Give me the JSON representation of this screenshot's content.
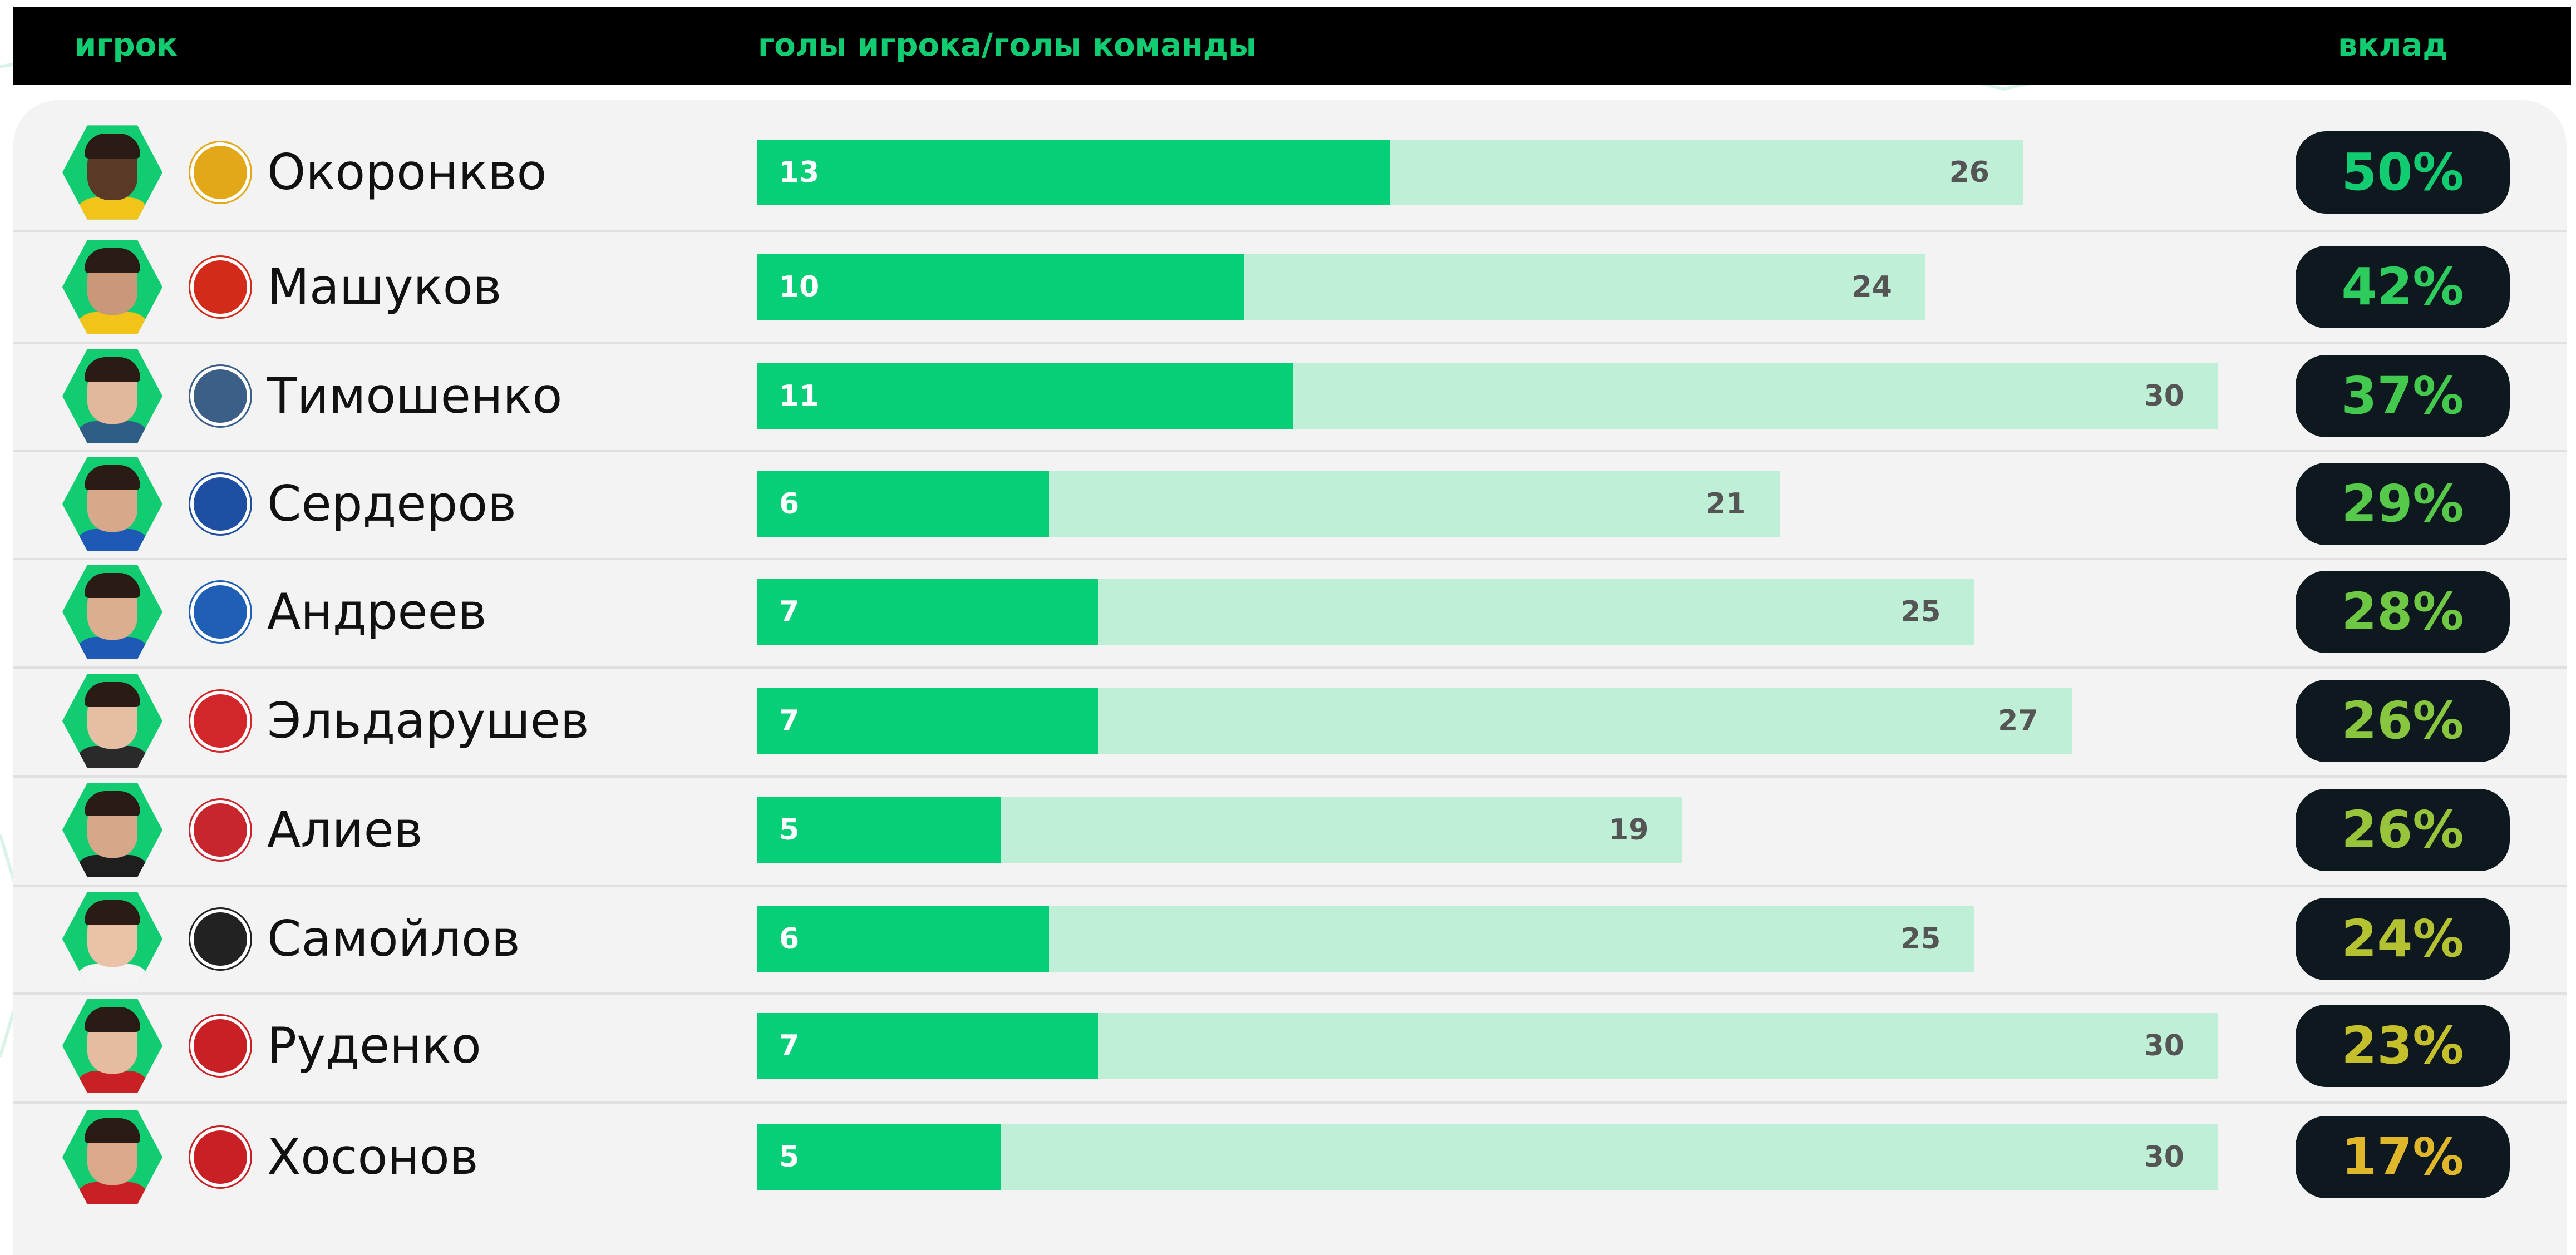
{
  "header": {
    "player_label": "игрок",
    "goals_label": "голы игрока/голы команды",
    "share_label": "вклад"
  },
  "colors": {
    "accent": "#12cc72",
    "player_bar": "#06cf77",
    "team_bar": "#bff0d7",
    "pill_bg": "#0e181f"
  },
  "chart_data": {
    "type": "bar",
    "orientation": "horizontal",
    "stacked_overlay": true,
    "title": "",
    "xlabel": "голы игрока/голы команды",
    "ylabel": "игрок",
    "grid": false,
    "legend": "none",
    "categories": [
      "Окоронкво",
      "Машуков",
      "Тимошенко",
      "Сердеров",
      "Андреев",
      "Эльдарушев",
      "Алиев",
      "Самойлов",
      "Руденко",
      "Хосонов"
    ],
    "series": [
      {
        "values": [
          13,
          10,
          11,
          6,
          7,
          7,
          5,
          6,
          7,
          5
        ]
      },
      {
        "values": [
          26,
          24,
          30,
          21,
          25,
          27,
          19,
          25,
          30,
          30
        ]
      }
    ],
    "xlim": [
      0,
      30
    ],
    "shares": [
      "50%",
      "42%",
      "37%",
      "29%",
      "28%",
      "26%",
      "26%",
      "24%",
      "23%",
      "17%"
    ],
    "share_colors": [
      "#12cc72",
      "#2ecc5c",
      "#44c94f",
      "#56c84a",
      "#6fc843",
      "#87c63e",
      "#97c43a",
      "#b4c232",
      "#c6bf2c",
      "#e0b62a"
    ],
    "clubs": [
      {
        "icon": "arsenal-tula-crest-icon",
        "color": "#e2a81a"
      },
      {
        "icon": "alania-crest-icon",
        "color": "#d42a1a"
      },
      {
        "icon": "fakel-crest-icon",
        "color": "#3b5f86"
      },
      {
        "icon": "dynamo-crest-icon",
        "color": "#1f4fa0"
      },
      {
        "icon": "chernomorets-crest-icon",
        "color": "#1f5fb5"
      },
      {
        "icon": "akron-crest-icon",
        "color": "#d3262b"
      },
      {
        "icon": "ska-khabarovsk-crest-icon",
        "color": "#c7262e"
      },
      {
        "icon": "torpedo-crest-icon",
        "color": "#222222"
      },
      {
        "icon": "khimki-crest-icon",
        "color": "#c82025"
      },
      {
        "icon": "khimki-crest-icon",
        "color": "#c82025"
      }
    ],
    "kits": [
      {
        "skin": "#5a3a26",
        "shirt": "#f2c41a"
      },
      {
        "skin": "#c99878",
        "shirt": "#f2c41a"
      },
      {
        "skin": "#e2b79b",
        "shirt": "#2e5d86"
      },
      {
        "skin": "#d8a88a",
        "shirt": "#1d59b5"
      },
      {
        "skin": "#dcae90",
        "shirt": "#1d59b5"
      },
      {
        "skin": "#e6bea3",
        "shirt": "#2a2a2a"
      },
      {
        "skin": "#d6a889",
        "shirt": "#1e1e1e"
      },
      {
        "skin": "#e9c2a8",
        "shirt": "#f4f4f4"
      },
      {
        "skin": "#e5bca0",
        "shirt": "#c82025"
      },
      {
        "skin": "#d9a98a",
        "shirt": "#c82025"
      }
    ]
  }
}
